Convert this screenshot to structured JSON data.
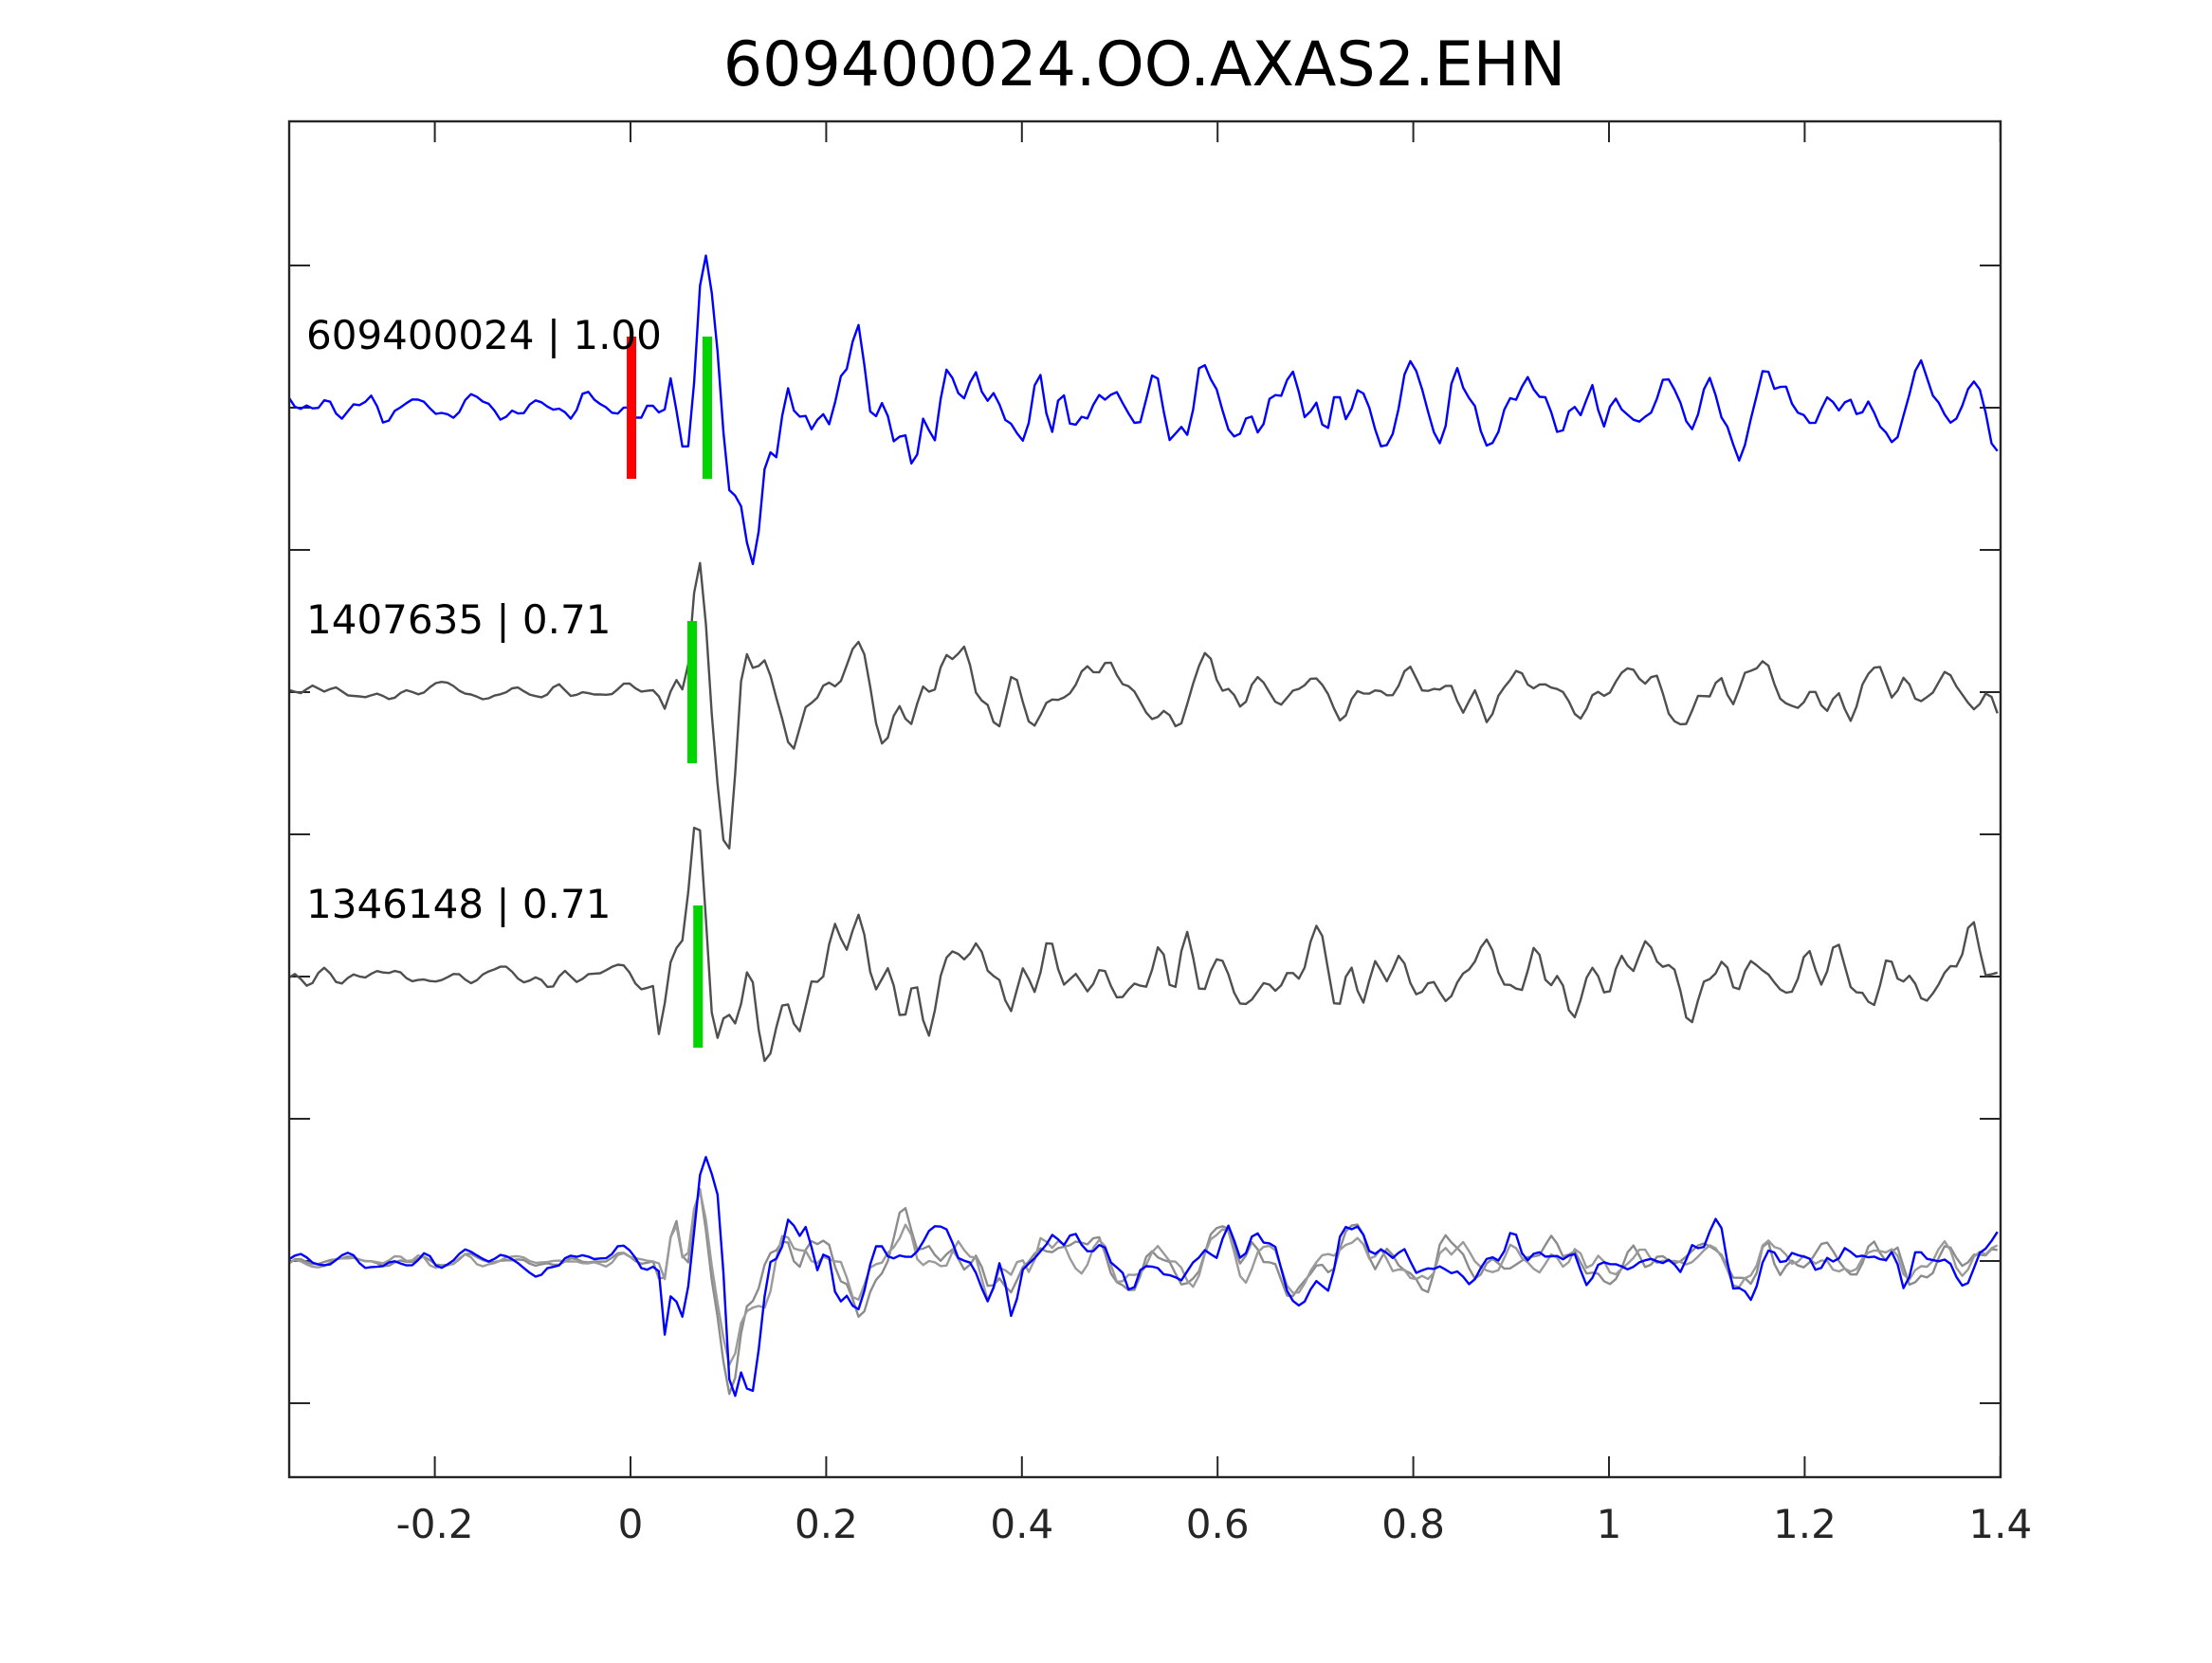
{
  "title": "609400024.OO.AXAS2.EHN",
  "colors": {
    "template_trace": "#0000ff",
    "detection_trace": "#4f4f4f",
    "overlay_gray_1": "#8c8c8c",
    "overlay_gray_2": "#9b9b9b",
    "overlay_blue": "#0000ff",
    "pick_reference": "#ff0000",
    "pick_detected": "#00d500",
    "axis": "#262626"
  },
  "chart_data": {
    "type": "line",
    "title": "609400024.OO.AXAS2.EHN",
    "xlabel": "",
    "ylabel": "",
    "xlim": [
      -0.349,
      1.4
    ],
    "xticks": [
      -0.2,
      0,
      0.2,
      0.4,
      0.6,
      0.8,
      1,
      1.2,
      1.4
    ],
    "xtick_labels": [
      "-0.2",
      "0",
      "0.2",
      "0.4",
      "0.6",
      "0.8",
      "1",
      "1.2",
      "1.4"
    ],
    "ytick_offsets": [
      0.5,
      0,
      -0.5,
      -1,
      -1.5,
      -2,
      -2.5,
      -3,
      -3.5
    ],
    "grid": false,
    "legend": false,
    "traces": [
      {
        "id": "609400024",
        "label": "609400024 | 1.00",
        "correlation": "1.00",
        "row": 0,
        "color": "#0000ff",
        "picks": [
          {
            "t": 0.001,
            "color": "#ff0000",
            "kind": "reference-pick"
          },
          {
            "t": 0.0785,
            "color": "#00d500",
            "kind": "detected-pick"
          }
        ],
        "synth": {
          "seed": 11,
          "pre": 0.05,
          "burst": 0.3,
          "decay": 0.24,
          "coda": 0.13,
          "wavelet": {
            "t": 0.0785,
            "peak": 0.4,
            "trough": 0.57
          }
        }
      },
      {
        "id": "1407635",
        "label": "1407635 | 0.71",
        "correlation": "0.71",
        "row": 1,
        "color": "#4f4f4f",
        "picks": [
          {
            "t": 0.063,
            "color": "#00d500",
            "kind": "detected-pick"
          }
        ],
        "synth": {
          "seed": 27,
          "pre": 0.03,
          "burst": 0.22,
          "decay": 0.22,
          "coda": 0.105,
          "wavelet": {
            "t": 0.0695,
            "peak": 0.56,
            "trough": 0.45
          }
        }
      },
      {
        "id": "1346148",
        "label": "1346148 | 0.71",
        "correlation": "0.71",
        "row": 2,
        "color": "#4f4f4f",
        "picks": [
          {
            "t": 0.069,
            "color": "#00d500",
            "kind": "detected-pick"
          }
        ],
        "synth": {
          "seed": 39,
          "pre": 0.042,
          "burst": 0.24,
          "decay": 0.26,
          "coda": 0.12,
          "wavelet": {
            "t": 0.0695,
            "peak": 0.55,
            "trough": 0.51
          }
        }
      },
      {
        "id": "overlay-1407635",
        "label": "",
        "row": 3,
        "color": "#8c8c8c",
        "picks": [],
        "synth": {
          "seed": 71,
          "shared": 77,
          "mix": 0.7,
          "pre": 0.03,
          "burst": 0.22,
          "decay": 0.2,
          "coda": 0.105,
          "wavelet": {
            "t": 0.071,
            "peak": 0.44,
            "trough": 0.52
          }
        }
      },
      {
        "id": "overlay-1346148",
        "label": "",
        "row": 3,
        "color": "#9b9b9b",
        "picks": [],
        "synth": {
          "seed": 83,
          "shared": 77,
          "mix": 0.7,
          "pre": 0.03,
          "burst": 0.22,
          "decay": 0.2,
          "coda": 0.1,
          "wavelet": {
            "t": 0.075,
            "peak": 0.42,
            "trough": 0.49
          }
        }
      },
      {
        "id": "overlay-609400024",
        "label": "",
        "row": 3,
        "color": "#0000ff",
        "picks": [],
        "synth": {
          "seed": 95,
          "shared": 77,
          "mix": 0.6,
          "pre": 0.045,
          "burst": 0.26,
          "decay": 0.22,
          "coda": 0.115,
          "wavelet": {
            "t": 0.079,
            "peak": 0.37,
            "trough": 0.56
          }
        }
      }
    ]
  }
}
